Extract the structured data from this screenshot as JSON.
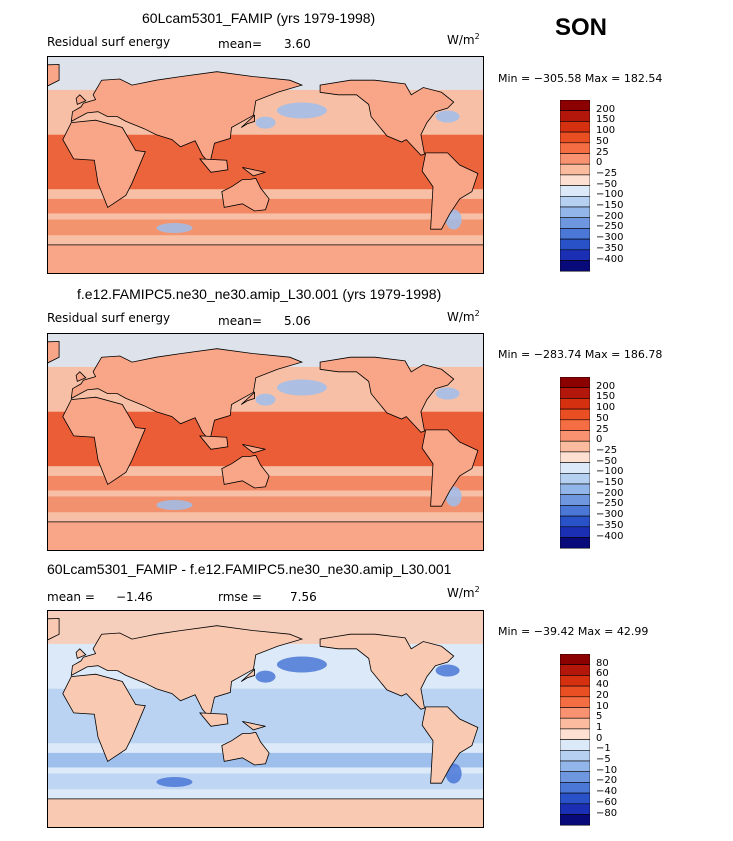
{
  "season": "SON",
  "units_main": "W/m",
  "units_sup": "2",
  "panels": [
    {
      "title": "60Lcam5301_FAMIP (yrs 1979-1998)",
      "variable": "Residual surf energy",
      "stat1_label": "mean=",
      "stat1_value": "3.60",
      "minmax": "Min = −305.58 Max = 182.54",
      "levels": [
        "200",
        "150",
        "100",
        "50",
        "25",
        "0",
        "−25",
        "−50",
        "−100",
        "−150",
        "−200",
        "−250",
        "−300",
        "−350",
        "−400"
      ],
      "colors": [
        "#8b0000",
        "#b3160a",
        "#d5300f",
        "#ea4f24",
        "#f46d43",
        "#f99270",
        "#fbbb9e",
        "#fde0d2",
        "#dbe9f8",
        "#b6d0f1",
        "#93b6ea",
        "#6f97e0",
        "#4b78d6",
        "#2a52c8",
        "#1a2fb3",
        "#080a7a"
      ]
    },
    {
      "title": "f.e12.FAMIPC5.ne30_ne30.amip_L30.001 (yrs 1979-1998)",
      "variable": "Residual surf energy",
      "stat1_label": "mean=",
      "stat1_value": "5.06",
      "minmax": "Min = −283.74 Max = 186.78",
      "levels": [
        "200",
        "150",
        "100",
        "50",
        "25",
        "0",
        "−25",
        "−50",
        "−100",
        "−150",
        "−200",
        "−250",
        "−300",
        "−350",
        "−400"
      ],
      "colors": [
        "#8b0000",
        "#b3160a",
        "#d5300f",
        "#ea4f24",
        "#f46d43",
        "#f99270",
        "#fbbb9e",
        "#fde0d2",
        "#dbe9f8",
        "#b6d0f1",
        "#93b6ea",
        "#6f97e0",
        "#4b78d6",
        "#2a52c8",
        "#1a2fb3",
        "#080a7a"
      ]
    },
    {
      "title": "60Lcam5301_FAMIP - f.e12.FAMIPC5.ne30_ne30.amip_L30.001",
      "stat1_label": "mean =",
      "stat1_value": "−1.46",
      "stat2_label": "rmse =",
      "stat2_value": "7.56",
      "minmax": "Min = −39.42 Max =  42.99",
      "levels": [
        "80",
        "60",
        "40",
        "20",
        "10",
        "5",
        "1",
        "0",
        "−1",
        "−5",
        "−10",
        "−20",
        "−40",
        "−60",
        "−80"
      ],
      "colors": [
        "#8b0000",
        "#b3160a",
        "#d5300f",
        "#ea4f24",
        "#f46d43",
        "#f99270",
        "#fbbb9e",
        "#fde0d2",
        "#dbe9f8",
        "#b6d0f1",
        "#93b6ea",
        "#6f97e0",
        "#4b78d6",
        "#2a52c8",
        "#1a2fb3",
        "#080a7a"
      ]
    }
  ],
  "chart_data": [
    {
      "type": "heatmap",
      "title": "60Lcam5301_FAMIP (yrs 1979-1998)",
      "subtitle": "Residual surf energy",
      "units": "W/m2",
      "mean": 3.6,
      "min": -305.58,
      "max": 182.54,
      "contour_levels": [
        200,
        150,
        100,
        50,
        25,
        0,
        -25,
        -50,
        -100,
        -150,
        -200,
        -250,
        -300,
        -350,
        -400
      ]
    },
    {
      "type": "heatmap",
      "title": "f.e12.FAMIPC5.ne30_ne30.amip_L30.001 (yrs 1979-1998)",
      "subtitle": "Residual surf energy",
      "units": "W/m2",
      "mean": 5.06,
      "min": -283.74,
      "max": 186.78,
      "contour_levels": [
        200,
        150,
        100,
        50,
        25,
        0,
        -25,
        -50,
        -100,
        -150,
        -200,
        -250,
        -300,
        -350,
        -400
      ]
    },
    {
      "type": "heatmap",
      "title": "60Lcam5301_FAMIP - f.e12.FAMIPC5.ne30_ne30.amip_L30.001",
      "units": "W/m2",
      "mean": -1.46,
      "rmse": 7.56,
      "min": -39.42,
      "max": 42.99,
      "contour_levels": [
        80,
        60,
        40,
        20,
        10,
        5,
        1,
        0,
        -1,
        -5,
        -10,
        -20,
        -40,
        -60,
        -80
      ]
    }
  ]
}
